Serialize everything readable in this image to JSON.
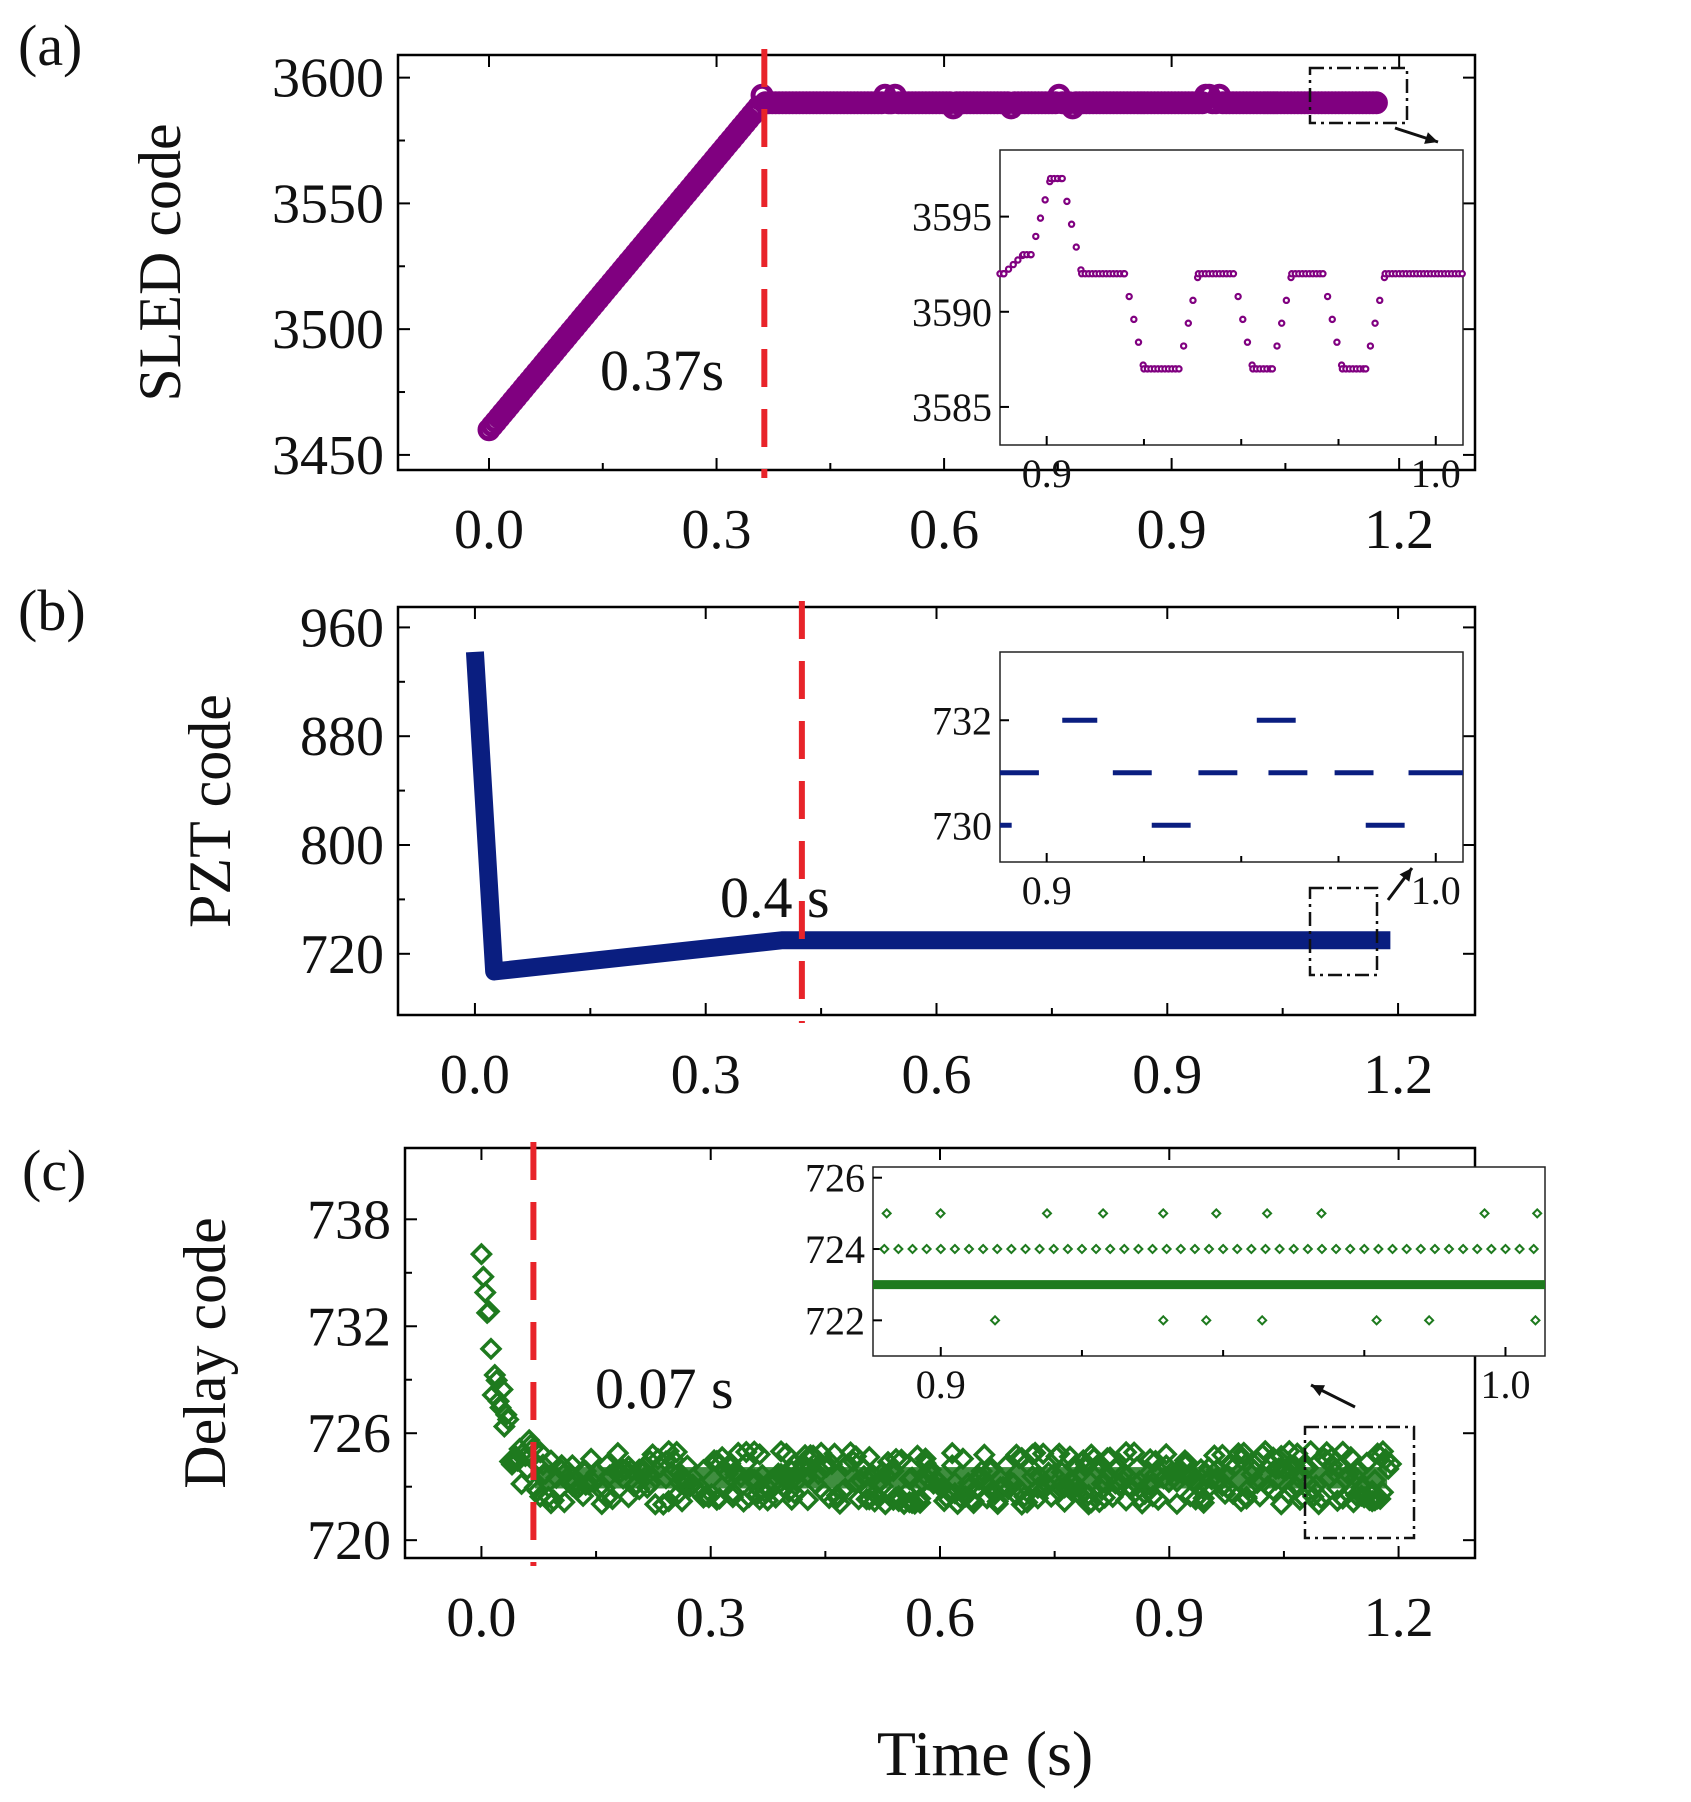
{
  "figure": {
    "xlabel": "Time (s)",
    "colors": {
      "a": "#800080",
      "b": "#0a1e80",
      "c": "#1e7a1e",
      "marker": "#e8242a"
    }
  },
  "chart_data": [
    {
      "panel": "(a)",
      "type": "scatter",
      "ylabel": "SLED code",
      "xlim": [
        -0.12,
        1.3
      ],
      "ylim": [
        3444,
        3609
      ],
      "xticks": [
        "0.0",
        "0.3",
        "0.6",
        "0.9",
        "1.2"
      ],
      "xtick_values": [
        0,
        0.3,
        0.6,
        0.9,
        1.2
      ],
      "yticks": [
        "3450",
        "3500",
        "3550",
        "3600"
      ],
      "ytick_values": [
        3450,
        3500,
        3550,
        3600
      ],
      "annotation": "0.37s",
      "marker_x": 0.363,
      "series": [
        {
          "name": "SLED code",
          "segments": [
            {
              "x0": 0.0,
              "x1": 0.36,
              "y0": 3460,
              "y1": 3590
            },
            {
              "x0": 0.36,
              "x1": 1.17,
              "y0": 3590,
              "y1": 3590
            }
          ]
        }
      ],
      "inset": {
        "xlim": [
          0.888,
          1.007
        ],
        "ylim": [
          3583,
          3598.5
        ],
        "xticks": [
          "0.9",
          "1.0"
        ],
        "xtick_values": [
          0.9,
          1.0
        ],
        "yticks": [
          "3585",
          "3590",
          "3595"
        ],
        "ytick_values": [
          3585,
          3590,
          3595
        ],
        "y": [
          3592,
          3593,
          3597,
          3592,
          3587,
          3592,
          3587,
          3592,
          3587,
          3592
        ],
        "x": [
          0.888,
          0.894,
          0.901,
          0.909,
          0.925,
          0.939,
          0.953,
          0.963,
          0.976,
          0.987
        ]
      }
    },
    {
      "panel": "(b)",
      "type": "scatter",
      "ylabel": "PZT code",
      "xlim": [
        -0.1,
        1.3
      ],
      "ylim": [
        675,
        975
      ],
      "xticks": [
        "0.0",
        "0.3",
        "0.6",
        "0.9",
        "1.2"
      ],
      "xtick_values": [
        0,
        0.3,
        0.6,
        0.9,
        1.2
      ],
      "yticks": [
        "720",
        "800",
        "880",
        "960"
      ],
      "ytick_values": [
        720,
        800,
        880,
        960
      ],
      "annotation": "0.4 s",
      "marker_x": 0.425,
      "series": [
        {
          "name": "PZT code",
          "points": [
            [
              0,
              942
            ],
            [
              0.025,
              707
            ],
            [
              0.4,
              730
            ],
            [
              1.19,
              730
            ]
          ]
        }
      ],
      "inset": {
        "xlim": [
          0.888,
          1.007
        ],
        "ylim": [
          729.3,
          733.3
        ],
        "xticks": [
          "0.9",
          "1.0"
        ],
        "xtick_values": [
          0.9,
          1.0
        ],
        "yticks": [
          "730",
          "732"
        ],
        "ytick_values": [
          730,
          732
        ],
        "segments": [
          [
            0.888,
            0.891,
            730
          ],
          [
            0.888,
            0.898,
            731
          ],
          [
            0.904,
            0.913,
            732
          ],
          [
            0.917,
            0.927,
            731
          ],
          [
            0.927,
            0.937,
            730
          ],
          [
            0.939,
            0.949,
            731
          ],
          [
            0.954,
            0.964,
            732
          ],
          [
            0.957,
            0.967,
            731
          ],
          [
            0.974,
            0.984,
            731
          ],
          [
            0.982,
            0.992,
            730
          ],
          [
            0.993,
            1.007,
            731
          ]
        ]
      }
    },
    {
      "panel": "(c)",
      "type": "scatter",
      "ylabel": "Delay code",
      "xlim": [
        -0.1,
        1.3
      ],
      "ylim": [
        719,
        742
      ],
      "xticks": [
        "0.0",
        "0.3",
        "0.6",
        "0.9",
        "1.2"
      ],
      "xtick_values": [
        0,
        0.3,
        0.6,
        0.9,
        1.2
      ],
      "yticks": [
        "720",
        "726",
        "732",
        "738"
      ],
      "ytick_values": [
        720,
        726,
        732,
        738
      ],
      "annotation": "0.07 s",
      "marker_x": 0.068,
      "series": [
        {
          "name": "Delay code",
          "start": {
            "x": 0.0,
            "y": 736
          },
          "band": [
            722,
            725
          ]
        }
      ],
      "inset": {
        "xlim": [
          0.888,
          1.007
        ],
        "ylim": [
          721,
          726.3
        ],
        "xticks": [
          "0.9",
          "1.0"
        ],
        "xtick_values": [
          0.9,
          1.0
        ],
        "yticks": [
          "722",
          "724",
          "726"
        ],
        "ytick_values": [
          722,
          724,
          726
        ],
        "levels": [
          722,
          723,
          724,
          725
        ]
      }
    }
  ]
}
